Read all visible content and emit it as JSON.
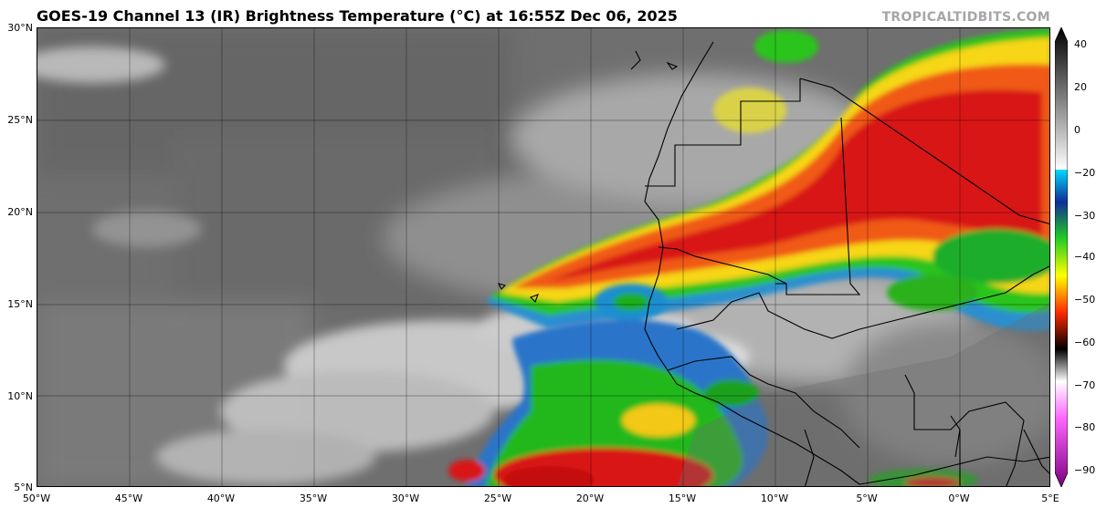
{
  "header": {
    "title": "GOES-19 Channel 13 (IR) Brightness Temperature (°C) at 16:55Z Dec 06, 2025",
    "credit": "TROPICALTIDBITS.COM"
  },
  "map": {
    "lat_labels": [
      "30°N",
      "25°N",
      "20°N",
      "15°N",
      "10°N",
      "5°N"
    ],
    "lon_labels": [
      "50°W",
      "45°W",
      "40°W",
      "35°W",
      "30°W",
      "25°W",
      "20°W",
      "15°W",
      "10°W",
      "5°W",
      "0°W",
      "5°E"
    ],
    "extent": {
      "lon_min": -50,
      "lon_max": 5,
      "lat_min": 5,
      "lat_max": 30
    }
  },
  "colorbar": {
    "labels": [
      "40",
      "20",
      "0",
      "−20",
      "−30",
      "−40",
      "−50",
      "−60",
      "−70",
      "−80",
      "−90"
    ],
    "values": [
      40,
      20,
      0,
      -20,
      -30,
      -40,
      -50,
      -60,
      -70,
      -80,
      -90
    ],
    "range": [
      -90,
      40
    ],
    "unit": "°C"
  }
}
